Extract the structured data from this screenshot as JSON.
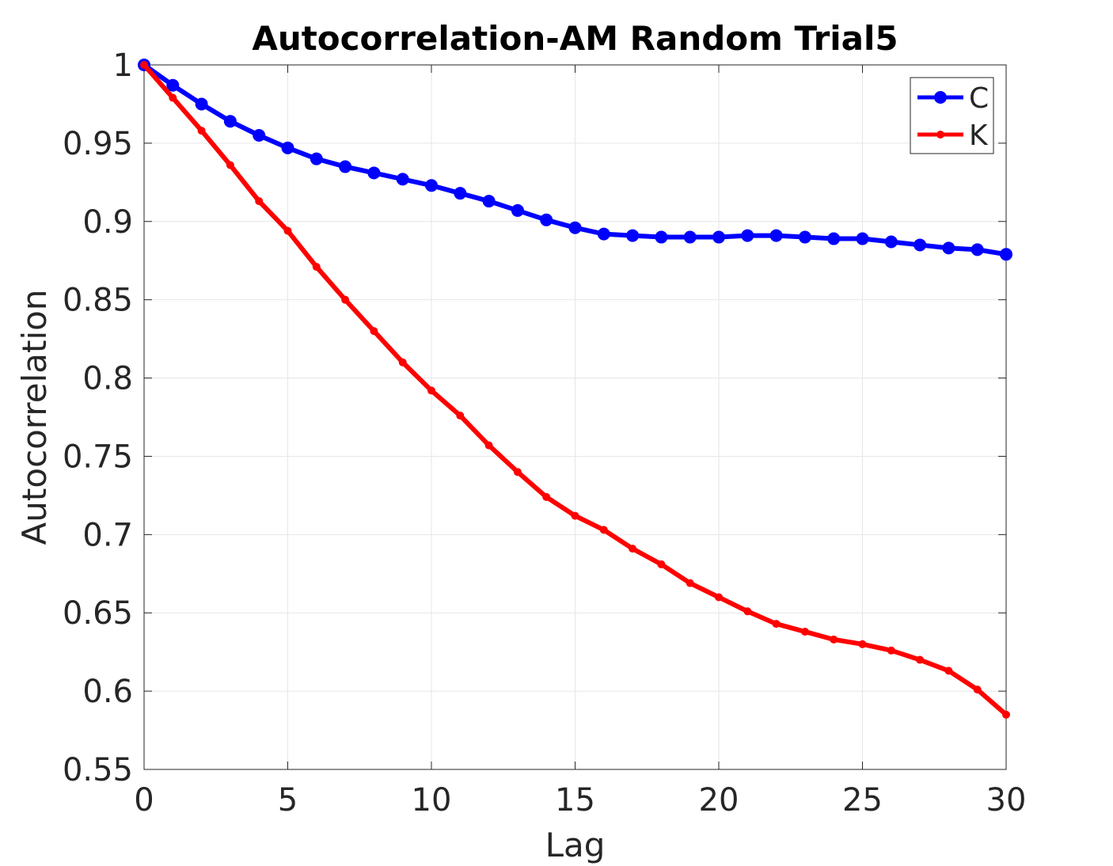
{
  "chart_data": {
    "type": "line",
    "title": "Autocorrelation-AM Random Trial5",
    "xlabel": "Lag",
    "ylabel": "Autocorrelation",
    "xlim": [
      0,
      30
    ],
    "ylim": [
      0.55,
      1
    ],
    "grid": true,
    "legend_position": "top-right",
    "x_ticks": [
      0,
      5,
      10,
      15,
      20,
      25,
      30
    ],
    "x_tick_labels": [
      "0",
      "5",
      "10",
      "15",
      "20",
      "25",
      "30"
    ],
    "y_ticks": [
      0.55,
      0.6,
      0.65,
      0.7,
      0.75,
      0.8,
      0.85,
      0.9,
      0.95,
      1
    ],
    "y_tick_labels": [
      "0.55",
      "0.6",
      "0.65",
      "0.7",
      "0.75",
      "0.8",
      "0.85",
      "0.9",
      "0.95",
      "1"
    ],
    "x": [
      0,
      1,
      2,
      3,
      4,
      5,
      6,
      7,
      8,
      9,
      10,
      11,
      12,
      13,
      14,
      15,
      16,
      17,
      18,
      19,
      20,
      21,
      22,
      23,
      24,
      25,
      26,
      27,
      28,
      29,
      30
    ],
    "series": [
      {
        "name": "C",
        "color": "#0000ff",
        "marker": "large-dot",
        "values": [
          1.0,
          0.987,
          0.975,
          0.964,
          0.955,
          0.947,
          0.94,
          0.935,
          0.931,
          0.927,
          0.923,
          0.918,
          0.913,
          0.907,
          0.901,
          0.896,
          0.892,
          0.891,
          0.89,
          0.89,
          0.89,
          0.891,
          0.891,
          0.89,
          0.889,
          0.889,
          0.887,
          0.885,
          0.883,
          0.882,
          0.879
        ]
      },
      {
        "name": "K",
        "color": "#ff0000",
        "marker": "small-dot",
        "values": [
          1.0,
          0.979,
          0.958,
          0.936,
          0.913,
          0.894,
          0.871,
          0.85,
          0.83,
          0.81,
          0.792,
          0.776,
          0.757,
          0.74,
          0.724,
          0.712,
          0.703,
          0.691,
          0.681,
          0.669,
          0.66,
          0.651,
          0.643,
          0.638,
          0.633,
          0.63,
          0.626,
          0.62,
          0.613,
          0.601,
          0.585
        ]
      }
    ]
  }
}
